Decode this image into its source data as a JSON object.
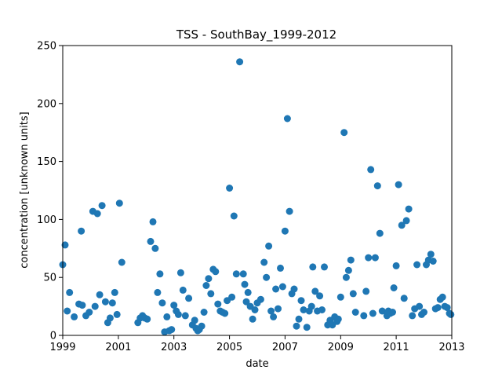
{
  "chart_data": {
    "type": "scatter",
    "title": "TSS - SouthBay_1999-2012",
    "xlabel": "date",
    "ylabel": "concentration [unknown units]",
    "xlim": [
      "1999-01-01",
      "2013-01-01"
    ],
    "ylim": [
      0,
      250
    ],
    "xticks": [
      "1999",
      "2001",
      "2003",
      "2005",
      "2007",
      "2009",
      "2011",
      "2013"
    ],
    "yticks": [
      0,
      50,
      100,
      150,
      200,
      250
    ],
    "grid": false,
    "marker_color": "#1f77b4",
    "points": [
      [
        "1999-01-01",
        61
      ],
      [
        "1999-02-01",
        78
      ],
      [
        "1999-03-01",
        21
      ],
      [
        "1999-04-01",
        37
      ],
      [
        "1999-06-01",
        16
      ],
      [
        "1999-08-01",
        27
      ],
      [
        "1999-09-01",
        90
      ],
      [
        "1999-09-15",
        26
      ],
      [
        "1999-11-01",
        17
      ],
      [
        "1999-12-15",
        20
      ],
      [
        "2000-02-01",
        107
      ],
      [
        "2000-03-01",
        25
      ],
      [
        "2000-04-01",
        105
      ],
      [
        "2000-05-01",
        35
      ],
      [
        "2000-06-01",
        112
      ],
      [
        "2000-07-15",
        29
      ],
      [
        "2000-08-15",
        11
      ],
      [
        "2000-09-15",
        15
      ],
      [
        "2000-10-15",
        28
      ],
      [
        "2000-11-15",
        37
      ],
      [
        "2000-12-15",
        18
      ],
      [
        "2001-01-15",
        114
      ],
      [
        "2001-02-15",
        63
      ],
      [
        "2001-09-15",
        11
      ],
      [
        "2001-10-15",
        15
      ],
      [
        "2001-11-15",
        17
      ],
      [
        "2001-12-15",
        15
      ],
      [
        "2002-01-15",
        14
      ],
      [
        "2002-03-01",
        81
      ],
      [
        "2002-04-01",
        98
      ],
      [
        "2002-05-01",
        75
      ],
      [
        "2002-06-01",
        37
      ],
      [
        "2002-07-01",
        53
      ],
      [
        "2002-08-01",
        28
      ],
      [
        "2002-09-01",
        3
      ],
      [
        "2002-10-01",
        16
      ],
      [
        "2002-11-01",
        4
      ],
      [
        "2002-12-01",
        5
      ],
      [
        "2003-01-01",
        26
      ],
      [
        "2003-02-01",
        21
      ],
      [
        "2003-03-01",
        18
      ],
      [
        "2003-04-01",
        54
      ],
      [
        "2003-05-01",
        39
      ],
      [
        "2003-06-01",
        17
      ],
      [
        "2003-07-15",
        32
      ],
      [
        "2003-09-01",
        9
      ],
      [
        "2003-10-01",
        13
      ],
      [
        "2003-10-20",
        6
      ],
      [
        "2003-11-10",
        4
      ],
      [
        "2003-12-01",
        5
      ],
      [
        "2004-01-01",
        8
      ],
      [
        "2004-02-01",
        20
      ],
      [
        "2004-03-01",
        43
      ],
      [
        "2004-04-01",
        49
      ],
      [
        "2004-05-01",
        36
      ],
      [
        "2004-06-01",
        57
      ],
      [
        "2004-07-01",
        55
      ],
      [
        "2004-08-01",
        27
      ],
      [
        "2004-09-01",
        21
      ],
      [
        "2004-10-01",
        20
      ],
      [
        "2004-11-01",
        19
      ],
      [
        "2004-12-01",
        30
      ],
      [
        "2005-01-01",
        127
      ],
      [
        "2005-02-01",
        33
      ],
      [
        "2005-03-01",
        103
      ],
      [
        "2005-04-01",
        53
      ],
      [
        "2005-05-15",
        236
      ],
      [
        "2005-07-01",
        53
      ],
      [
        "2005-07-20",
        44
      ],
      [
        "2005-08-10",
        29
      ],
      [
        "2005-09-01",
        37
      ],
      [
        "2005-10-01",
        25
      ],
      [
        "2005-11-01",
        14
      ],
      [
        "2005-12-01",
        22
      ],
      [
        "2006-01-01",
        28
      ],
      [
        "2006-02-15",
        31
      ],
      [
        "2006-04-01",
        63
      ],
      [
        "2006-05-01",
        50
      ],
      [
        "2006-06-01",
        77
      ],
      [
        "2006-07-01",
        21
      ],
      [
        "2006-08-01",
        16
      ],
      [
        "2006-09-01",
        40
      ],
      [
        "2006-10-01",
        23
      ],
      [
        "2006-11-01",
        58
      ],
      [
        "2006-12-01",
        42
      ],
      [
        "2007-01-01",
        90
      ],
      [
        "2007-02-01",
        187
      ],
      [
        "2007-03-01",
        107
      ],
      [
        "2007-04-01",
        36
      ],
      [
        "2007-05-01",
        40
      ],
      [
        "2007-06-01",
        8
      ],
      [
        "2007-07-01",
        14
      ],
      [
        "2007-08-01",
        30
      ],
      [
        "2007-09-01",
        22
      ],
      [
        "2007-10-15",
        7
      ],
      [
        "2007-11-15",
        21
      ],
      [
        "2007-12-15",
        25
      ],
      [
        "2008-01-01",
        59
      ],
      [
        "2008-02-01",
        38
      ],
      [
        "2008-03-01",
        21
      ],
      [
        "2008-04-01",
        34
      ],
      [
        "2008-05-01",
        22
      ],
      [
        "2008-06-01",
        59
      ],
      [
        "2008-07-15",
        9
      ],
      [
        "2008-08-15",
        13
      ],
      [
        "2008-09-15",
        9
      ],
      [
        "2008-10-15",
        16
      ],
      [
        "2008-11-15",
        12
      ],
      [
        "2008-12-01",
        14
      ],
      [
        "2009-01-01",
        33
      ],
      [
        "2009-02-15",
        175
      ],
      [
        "2009-03-15",
        50
      ],
      [
        "2009-04-15",
        56
      ],
      [
        "2009-05-15",
        65
      ],
      [
        "2009-06-15",
        36
      ],
      [
        "2009-07-15",
        20
      ],
      [
        "2009-11-01",
        17
      ],
      [
        "2009-12-01",
        38
      ],
      [
        "2010-01-01",
        67
      ],
      [
        "2010-02-01",
        143
      ],
      [
        "2010-03-01",
        19
      ],
      [
        "2010-04-01",
        67
      ],
      [
        "2010-05-01",
        129
      ],
      [
        "2010-06-01",
        88
      ],
      [
        "2010-07-01",
        21
      ],
      [
        "2010-09-01",
        17
      ],
      [
        "2010-09-20",
        21
      ],
      [
        "2010-10-15",
        19
      ],
      [
        "2010-11-15",
        20
      ],
      [
        "2010-12-01",
        41
      ],
      [
        "2011-01-01",
        60
      ],
      [
        "2011-02-01",
        130
      ],
      [
        "2011-03-15",
        95
      ],
      [
        "2011-04-15",
        32
      ],
      [
        "2011-05-15",
        99
      ],
      [
        "2011-06-15",
        109
      ],
      [
        "2011-08-01",
        17
      ],
      [
        "2011-09-01",
        23
      ],
      [
        "2011-10-01",
        61
      ],
      [
        "2011-11-01",
        25
      ],
      [
        "2011-12-01",
        18
      ],
      [
        "2012-01-01",
        20
      ],
      [
        "2012-02-01",
        61
      ],
      [
        "2012-03-01",
        65
      ],
      [
        "2012-04-01",
        70
      ],
      [
        "2012-05-01",
        64
      ],
      [
        "2012-06-01",
        23
      ],
      [
        "2012-07-01",
        24
      ],
      [
        "2012-08-01",
        31
      ],
      [
        "2012-09-01",
        33
      ],
      [
        "2012-10-01",
        25
      ],
      [
        "2012-11-01",
        24
      ],
      [
        "2012-12-01",
        19
      ],
      [
        "2012-12-20",
        18
      ]
    ]
  }
}
